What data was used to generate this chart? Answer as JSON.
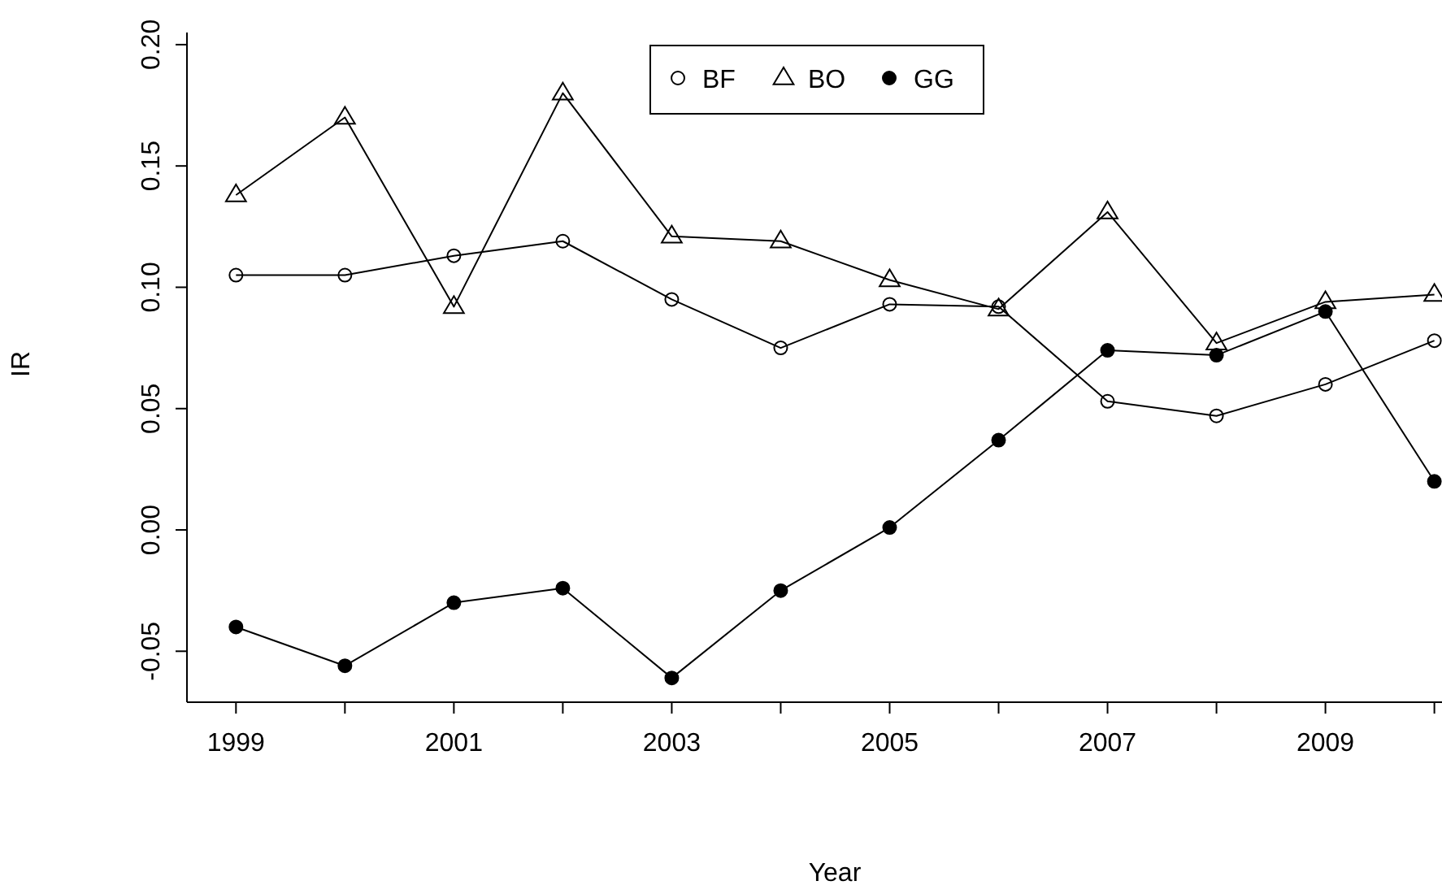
{
  "chart_data": {
    "type": "line",
    "xlabel": "Year",
    "ylabel": "IR",
    "x": [
      1999,
      2000,
      2001,
      2002,
      2003,
      2004,
      2005,
      2006,
      2007,
      2008,
      2009,
      2010
    ],
    "series": [
      {
        "name": "BF",
        "color": "#000000",
        "marker": "circle",
        "values": [
          0.105,
          0.105,
          0.113,
          0.119,
          0.095,
          0.075,
          0.093,
          0.092,
          0.053,
          0.047,
          0.06,
          0.078
        ]
      },
      {
        "name": "BO",
        "color": "#000000",
        "marker": "triangle",
        "values": [
          0.138,
          0.17,
          0.092,
          0.18,
          0.121,
          0.119,
          0.103,
          0.091,
          0.131,
          0.077,
          0.094,
          0.097
        ]
      },
      {
        "name": "GG",
        "color": "#000000",
        "marker": "filled-circle",
        "values": [
          -0.04,
          -0.056,
          -0.03,
          -0.024,
          -0.061,
          -0.025,
          0.001,
          0.037,
          0.074,
          0.072,
          0.09,
          0.02
        ]
      }
    ],
    "xlim": [
      1998.55,
      2010.07
    ],
    "ylim": [
      -0.071,
      0.205
    ],
    "xticks": [
      1999,
      {
        "value": 2000,
        "label": null
      },
      2001,
      {
        "value": 2002,
        "label": null
      },
      2003,
      {
        "value": 2004,
        "label": null
      },
      2005,
      {
        "value": 2006,
        "label": null
      },
      2007,
      {
        "value": 2008,
        "label": null
      },
      2009,
      {
        "value": 2010,
        "label": null
      }
    ],
    "yticks": [
      {
        "value": -0.05,
        "label": "-0.05"
      },
      {
        "value": 0,
        "label": "0.00"
      },
      {
        "value": 0.05,
        "label": "0.05"
      },
      {
        "value": 0.1,
        "label": "0.10"
      },
      {
        "value": 0.15,
        "label": "0.15"
      },
      {
        "value": 0.2,
        "label": "0.20"
      }
    ],
    "legend": "top",
    "line_style": "solid"
  }
}
